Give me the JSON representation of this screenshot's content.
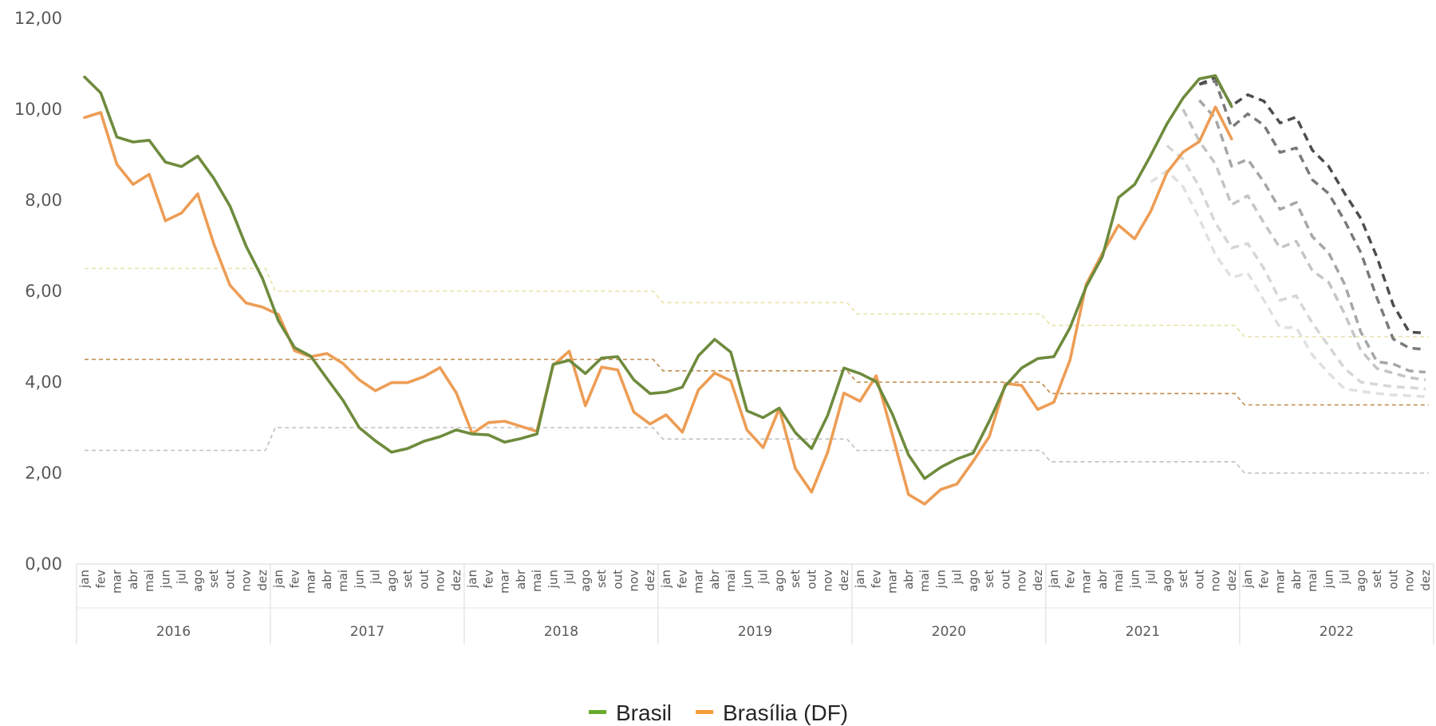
{
  "chart_data": {
    "type": "line",
    "title": "",
    "xlabel": "",
    "ylabel": "",
    "ylim": [
      0,
      12
    ],
    "yticks": [
      "0,00",
      "2,00",
      "4,00",
      "6,00",
      "8,00",
      "10,00",
      "12,00"
    ],
    "ytick_values": [
      0,
      2,
      4,
      6,
      8,
      10,
      12
    ],
    "grid": false,
    "legend_position": "bottom",
    "years": [
      "2016",
      "2017",
      "2018",
      "2019",
      "2020",
      "2021",
      "2022"
    ],
    "months": [
      "jan",
      "fev",
      "mar",
      "abr",
      "mai",
      "jun",
      "jul",
      "ago",
      "set",
      "out",
      "nov",
      "dez"
    ],
    "series": [
      {
        "name": "Brasil",
        "color": "#6e8b3d",
        "values": [
          10.71,
          10.36,
          9.39,
          9.28,
          9.32,
          8.84,
          8.74,
          8.97,
          8.48,
          7.87,
          6.99,
          6.29,
          5.35,
          4.76,
          4.57,
          4.08,
          3.6,
          3.0,
          2.71,
          2.46,
          2.54,
          2.7,
          2.8,
          2.95,
          2.86,
          2.84,
          2.68,
          2.76,
          2.86,
          4.39,
          4.48,
          4.19,
          4.53,
          4.56,
          4.05,
          3.75,
          3.78,
          3.89,
          4.58,
          4.94,
          4.66,
          3.37,
          3.22,
          3.43,
          2.89,
          2.54,
          3.27,
          4.31,
          4.19,
          4.01,
          3.3,
          2.4,
          1.88,
          2.13,
          2.31,
          2.44,
          3.14,
          3.92,
          4.31,
          4.52,
          4.56,
          5.2,
          6.1,
          6.76,
          8.06,
          8.35,
          8.99,
          9.68,
          10.25,
          10.67,
          10.74,
          10.06
        ]
      },
      {
        "name": "Brasília (DF)",
        "color": "#ed9d55",
        "values": [
          9.82,
          9.93,
          8.79,
          8.35,
          8.57,
          7.55,
          7.72,
          8.14,
          7.04,
          6.13,
          5.74,
          5.65,
          5.49,
          4.69,
          4.56,
          4.63,
          4.41,
          4.05,
          3.81,
          3.99,
          3.99,
          4.12,
          4.32,
          3.77,
          2.87,
          3.11,
          3.14,
          3.03,
          2.92,
          4.37,
          4.68,
          3.48,
          4.33,
          4.27,
          3.34,
          3.08,
          3.28,
          2.9,
          3.83,
          4.2,
          4.03,
          2.95,
          2.56,
          3.42,
          2.1,
          1.58,
          2.46,
          3.76,
          3.58,
          4.14,
          2.85,
          1.53,
          1.32,
          1.64,
          1.76,
          2.26,
          2.8,
          3.97,
          3.93,
          3.4,
          3.56,
          4.49,
          6.15,
          6.83,
          7.45,
          7.15,
          7.76,
          8.61,
          9.06,
          9.29,
          10.05,
          9.35
        ]
      }
    ],
    "projections": [
      {
        "color": "#4d4d4d",
        "start_index": 69,
        "values": [
          10.55,
          10.7,
          10.08,
          10.32,
          10.18,
          9.7,
          9.83,
          9.1,
          8.75,
          8.15,
          7.6,
          6.75,
          5.7,
          5.1,
          5.08
        ]
      },
      {
        "color": "#7a7a7a",
        "start_index": 69,
        "values": [
          10.55,
          10.62,
          9.6,
          9.9,
          9.65,
          9.05,
          9.15,
          8.45,
          8.15,
          7.55,
          6.85,
          5.85,
          4.95,
          4.75,
          4.72
        ]
      },
      {
        "color": "#a6a6a6",
        "start_index": 69,
        "values": [
          10.2,
          9.8,
          8.75,
          8.9,
          8.4,
          7.8,
          7.95,
          7.2,
          6.85,
          6.15,
          5.1,
          4.45,
          4.4,
          4.25,
          4.22
        ]
      },
      {
        "color": "#c4c4c4",
        "start_index": 68,
        "values": [
          10.0,
          9.3,
          8.8,
          7.9,
          8.1,
          7.5,
          6.95,
          7.1,
          6.45,
          6.2,
          5.5,
          4.7,
          4.3,
          4.2,
          4.1,
          4.05
        ]
      },
      {
        "color": "#d6d6d6",
        "start_index": 67,
        "values": [
          9.2,
          8.9,
          8.3,
          7.5,
          6.95,
          7.05,
          6.5,
          5.8,
          5.9,
          5.3,
          4.8,
          4.3,
          4.0,
          3.95,
          3.9,
          3.88,
          3.85
        ]
      },
      {
        "color": "#e0e0e0",
        "start_index": 66,
        "values": [
          8.4,
          8.65,
          8.3,
          7.6,
          6.8,
          6.3,
          6.4,
          5.8,
          5.2,
          5.2,
          4.6,
          4.2,
          3.85,
          3.8,
          3.75,
          3.72,
          3.7,
          3.68
        ]
      }
    ],
    "target_bands": {
      "center_color": "#c08a4a",
      "upper_color": "#e8e2a8",
      "lower_color": "#bfbfbf",
      "center": [
        4.5,
        4.5,
        4.5,
        4.25,
        4.0,
        3.75,
        3.5
      ],
      "upper": [
        6.5,
        6.0,
        6.0,
        5.75,
        5.5,
        5.25,
        5.0
      ],
      "lower": [
        2.5,
        3.0,
        3.0,
        2.75,
        2.5,
        2.25,
        2.0
      ]
    }
  }
}
